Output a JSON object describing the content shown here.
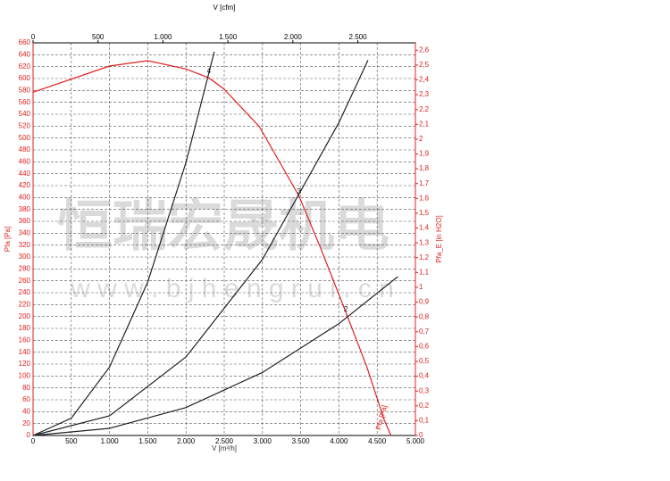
{
  "chart_data": {
    "type": "line",
    "x_label": "V [m³/h]",
    "x2_label": "V [cfm]",
    "y_label": "Pfa [Pa]",
    "y2_label": "Pfa_E [in H2O]",
    "xlim": [
      0,
      5000
    ],
    "xticks": [
      0,
      500,
      {
        "value": 1000,
        "label": "1.000"
      },
      {
        "value": 1500,
        "label": "1.500"
      },
      {
        "value": 2000,
        "label": "2.000"
      },
      {
        "value": 2500,
        "label": "2.500"
      },
      {
        "value": 3000,
        "label": "3.000"
      },
      {
        "value": 3500,
        "label": "3.500"
      },
      {
        "value": 4000,
        "label": "4.000"
      },
      {
        "value": 4500,
        "label": "4.500"
      },
      {
        "value": 5000,
        "label": "5.000"
      }
    ],
    "x2lim": [
      0,
      2943
    ],
    "x2ticks": [
      0,
      500,
      {
        "value": 1000,
        "label": "1.000"
      },
      {
        "value": 1500,
        "label": "1.500"
      },
      {
        "value": 2000,
        "label": "2.000"
      },
      {
        "value": 2500,
        "label": "2.500"
      }
    ],
    "ylim": [
      0,
      660
    ],
    "yticks": [
      0,
      20,
      40,
      60,
      80,
      100,
      120,
      140,
      160,
      180,
      200,
      220,
      240,
      260,
      280,
      300,
      320,
      340,
      360,
      380,
      400,
      420,
      440,
      460,
      480,
      500,
      520,
      540,
      560,
      580,
      600,
      620,
      640,
      660
    ],
    "y2lim": [
      0,
      2.65
    ],
    "y2ticks": [
      0,
      {
        "value": 0.1,
        "label": "0,1"
      },
      {
        "value": 0.2,
        "label": "0,2"
      },
      {
        "value": 0.3,
        "label": "0,3"
      },
      {
        "value": 0.4,
        "label": "0,4"
      },
      {
        "value": 0.5,
        "label": "0,5"
      },
      {
        "value": 0.6,
        "label": "0,6"
      },
      {
        "value": 0.7,
        "label": "0,7"
      },
      {
        "value": 0.8,
        "label": "0,8"
      },
      {
        "value": 0.9,
        "label": "0,9"
      },
      1,
      {
        "value": 1.1,
        "label": "1,1"
      },
      {
        "value": 1.2,
        "label": "1,2"
      },
      {
        "value": 1.3,
        "label": "1,3"
      },
      {
        "value": 1.4,
        "label": "1,4"
      },
      {
        "value": 1.5,
        "label": "1,5"
      },
      {
        "value": 1.6,
        "label": "1,6"
      },
      {
        "value": 1.7,
        "label": "1,7"
      },
      {
        "value": 1.8,
        "label": "1,8"
      },
      {
        "value": 1.9,
        "label": "1,9"
      },
      2,
      {
        "value": 2.1,
        "label": "2,1"
      },
      {
        "value": 2.2,
        "label": "2,2"
      },
      {
        "value": 2.3,
        "label": "2,3"
      },
      {
        "value": 2.4,
        "label": "2,4"
      },
      {
        "value": 2.5,
        "label": "2,5"
      },
      {
        "value": 2.6,
        "label": "2,6"
      }
    ],
    "grid": true,
    "series": [
      {
        "name": "Pfa [Pa]",
        "color": "#e02020",
        "x": [
          0,
          1000,
          1500,
          2000,
          2300,
          2500,
          2960,
          3480,
          3770,
          4100,
          4360,
          4590,
          4680
        ],
        "values": [
          577,
          621,
          630,
          616,
          601,
          582,
          519,
          402,
          312,
          204,
          117,
          27,
          0
        ]
      },
      {
        "name": "4",
        "color": "#222222",
        "x": [
          0,
          500,
          1000,
          1500,
          2000,
          2370
        ],
        "values": [
          0,
          29,
          115,
          258,
          459,
          645
        ]
      },
      {
        "name": "3",
        "color": "#222222",
        "x": [
          0,
          1000,
          2000,
          3000,
          4000,
          4380
        ],
        "values": [
          0,
          33,
          132,
          296,
          526,
          631
        ]
      },
      {
        "name": "2",
        "color": "#222222",
        "x": [
          0,
          1000,
          2000,
          3000,
          4000,
          4770
        ],
        "values": [
          0,
          12,
          47,
          106,
          188,
          267
        ]
      }
    ],
    "watermark": [
      "恒瑞宏晟机电",
      "w w w . b j h e n g r u i . c n"
    ]
  }
}
